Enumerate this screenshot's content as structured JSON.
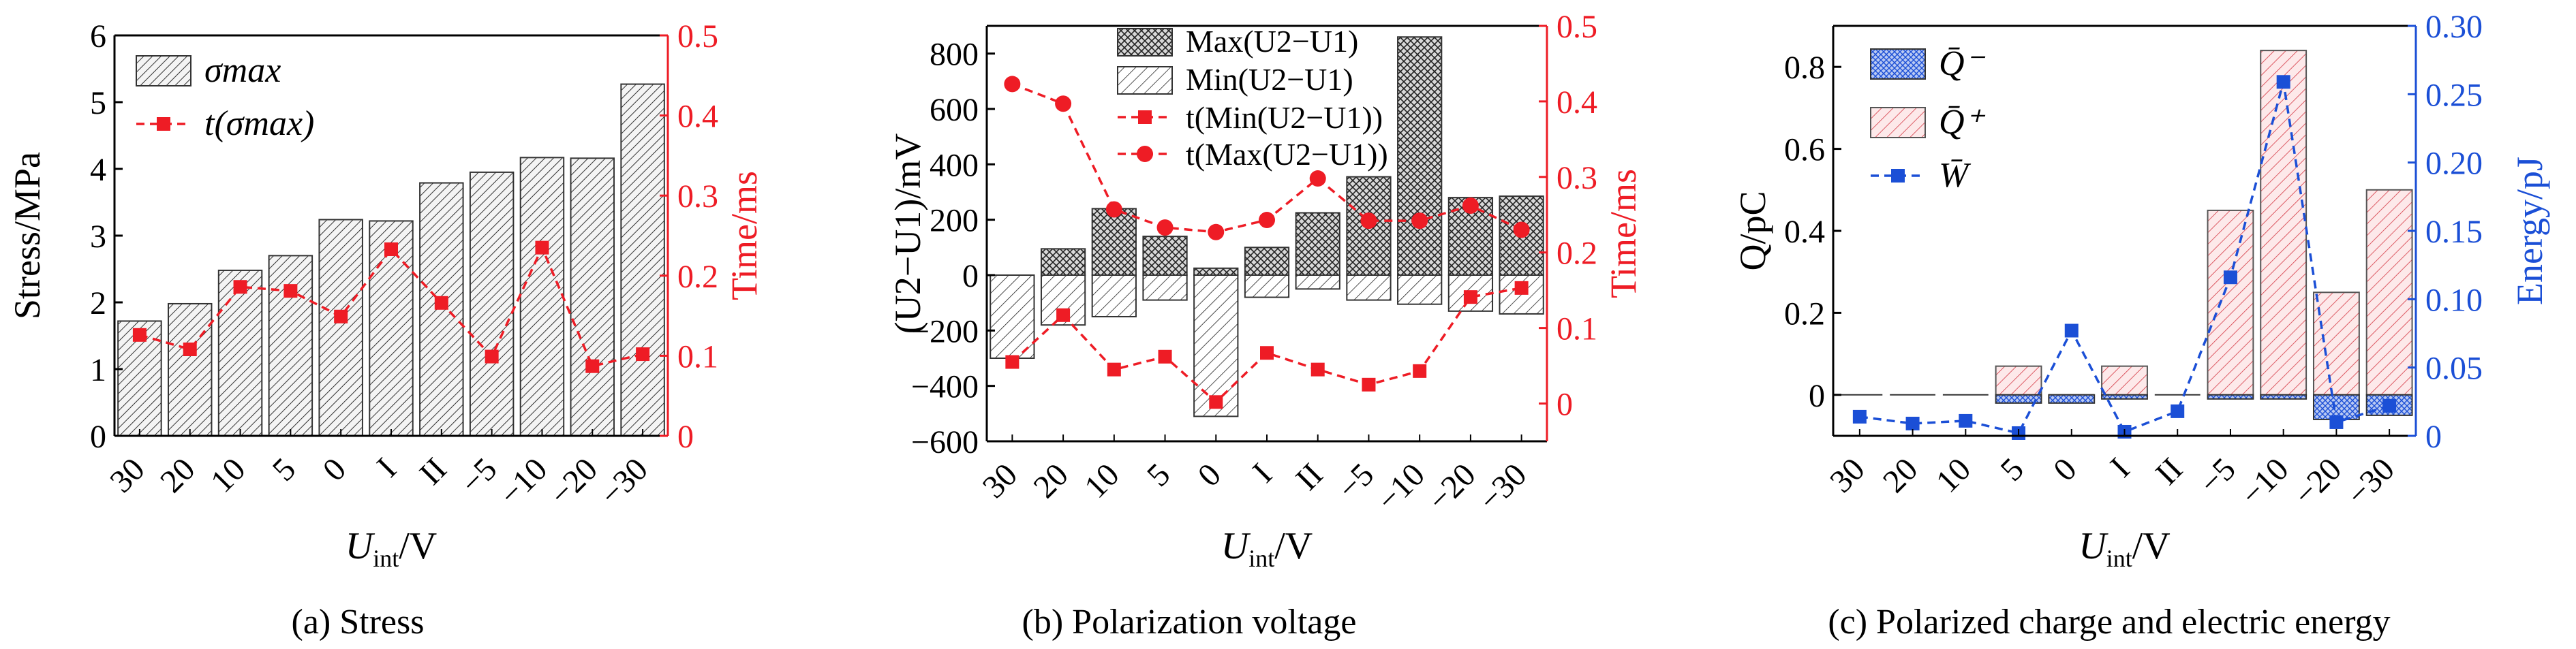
{
  "colors": {
    "left_axis": "#000000",
    "right_axis_a": "#ee1c25",
    "right_axis_b": "#ee1c25",
    "right_axis_c": "#1b4fd6",
    "line_a": "#ee1c25",
    "line_b": "#ee1c25",
    "line_c": "#1b4fd6",
    "bar_c_pos": "#d94a55",
    "bar_c_neg": "#1b4fd6"
  },
  "chart_data": [
    {
      "type": "bar",
      "caption": "(a) Stress",
      "categories": [
        "30",
        "20",
        "10",
        "5",
        "0",
        "I",
        "II",
        "−5",
        "−10",
        "−20",
        "−30"
      ],
      "series": [
        {
          "name": "σmax",
          "kind": "bar",
          "axis": "left",
          "values": [
            1.72,
            1.98,
            2.48,
            2.7,
            3.24,
            3.22,
            3.79,
            3.95,
            4.17,
            4.16,
            5.27
          ]
        },
        {
          "name": "t(σmax)",
          "kind": "line",
          "axis": "right",
          "values": [
            0.126,
            0.108,
            0.186,
            0.181,
            0.149,
            0.233,
            0.166,
            0.099,
            0.235,
            0.087,
            0.102
          ]
        }
      ],
      "xlabel_main": "U",
      "xlabel_sub": "int",
      "xlabel_unit": "/V",
      "ylabel": "Stress/MPa",
      "ylabel_right": "Time/ms",
      "ylim": [
        0,
        6
      ],
      "yticks": [
        "0",
        "1",
        "2",
        "3",
        "4",
        "5",
        "6"
      ],
      "ylim_right": [
        0,
        0.5
      ],
      "yticks_right": [
        "0",
        "0.1",
        "0.2",
        "0.3",
        "0.4",
        "0.5"
      ],
      "legend": [
        "σmax",
        "t(σmax)"
      ]
    },
    {
      "type": "bar",
      "caption": "(b) Polarization voltage",
      "categories": [
        "30",
        "20",
        "10",
        "5",
        "0",
        "I",
        "II",
        "−5",
        "−10",
        "−20",
        "−30"
      ],
      "series": [
        {
          "name": "Max(U2−U1)",
          "kind": "bar",
          "axis": "left",
          "values": [
            -10,
            95,
            240,
            140,
            25,
            100,
            225,
            355,
            860,
            280,
            285
          ]
        },
        {
          "name": "Min(U2−U1)",
          "kind": "bar",
          "axis": "left",
          "values": [
            -300,
            -180,
            -150,
            -90,
            -510,
            -80,
            -50,
            -90,
            -105,
            -130,
            -140
          ]
        },
        {
          "name": "t(Min(U2−U1))",
          "kind": "line",
          "marker": "square",
          "axis": "right",
          "values": [
            0.055,
            0.117,
            0.045,
            0.062,
            0.002,
            0.067,
            0.045,
            0.025,
            0.043,
            0.141,
            0.153
          ]
        },
        {
          "name": "t(Max(U2−U1))",
          "kind": "line",
          "marker": "circle",
          "axis": "right",
          "values": [
            0.423,
            0.397,
            0.257,
            0.233,
            0.227,
            0.243,
            0.298,
            0.242,
            0.242,
            0.262,
            0.23
          ]
        }
      ],
      "xlabel_main": "U",
      "xlabel_sub": "int",
      "xlabel_unit": "/V",
      "ylabel": "(U2−U1)/mV",
      "ylabel_right": "Time/ms",
      "ylim": [
        -600,
        900
      ],
      "yticks": [
        "−600",
        "−400",
        "−200",
        "0",
        "200",
        "400",
        "600",
        "800"
      ],
      "ylim_right": [
        -0.05,
        0.5
      ],
      "yticks_right": [
        "0",
        "0.1",
        "0.2",
        "0.3",
        "0.4",
        "0.5"
      ],
      "legend": [
        "Max(U2−U1)",
        "Min(U2−U1)",
        "t(Min(U2−U1))",
        "t(Max(U2−U1))"
      ]
    },
    {
      "type": "bar",
      "caption": "(c) Polarized charge and electric energy",
      "categories": [
        "30",
        "20",
        "10",
        "5",
        "0",
        "I",
        "II",
        "−5",
        "−10",
        "−20",
        "−30"
      ],
      "series": [
        {
          "name": "Q̄⁻",
          "kind": "bar",
          "axis": "left",
          "values": [
            0,
            0,
            0,
            -0.02,
            -0.02,
            -0.01,
            0,
            -0.01,
            -0.01,
            -0.06,
            -0.05
          ]
        },
        {
          "name": "Q̄⁺",
          "kind": "bar",
          "axis": "left",
          "values": [
            0,
            0,
            0,
            0.07,
            0,
            0.07,
            0,
            0.45,
            0.84,
            0.25,
            0.5
          ]
        },
        {
          "name": "W̄",
          "kind": "line",
          "axis": "right",
          "values": [
            0.014,
            0.009,
            0.011,
            0.002,
            0.077,
            0.003,
            0.018,
            0.116,
            0.259,
            0.01,
            0.022
          ]
        }
      ],
      "xlabel_main": "U",
      "xlabel_sub": "int",
      "xlabel_unit": "/V",
      "ylabel": "Q/pC",
      "ylabel_right": "Energy/pJ",
      "ylim": [
        -0.1,
        0.9
      ],
      "yticks": [
        "0",
        "0.2",
        "0.4",
        "0.6",
        "0.8"
      ],
      "ylim_right": [
        0,
        0.3
      ],
      "yticks_right": [
        "0",
        "0.05",
        "0.10",
        "0.15",
        "0.20",
        "0.25",
        "0.30"
      ],
      "legend": [
        "Q̄⁻",
        "Q̄⁺",
        "W̄"
      ]
    }
  ]
}
